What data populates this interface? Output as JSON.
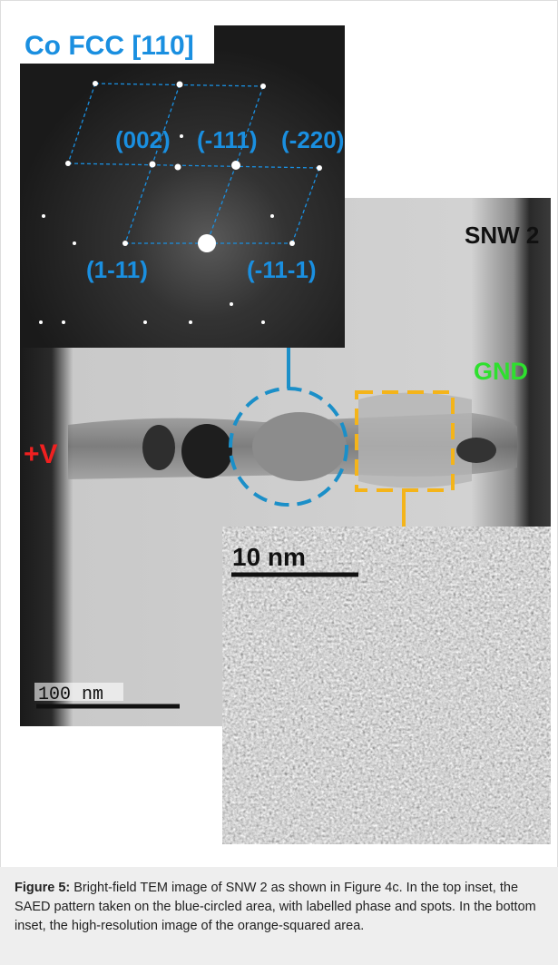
{
  "figure": {
    "saed_title": "Co FCC [110]",
    "spot_labels": [
      "(002)",
      "(-111)",
      "(-220)",
      "(1-11)",
      "(-11-1)"
    ],
    "sample_label": "SNW 2",
    "ground_label": "GND",
    "voltage_label": "+V",
    "hr_scale_bar": "10 nm",
    "main_scale_bar": "100 nm"
  },
  "caption": {
    "label": "Figure 5:",
    "text": "Bright-field TEM image of SNW 2 as shown in Figure 4c. In the top inset, the SAED pattern taken on the blue-circled area, with labelled phase and spots. In the bottom inset, the high-resolution image of the orange-squared area."
  }
}
